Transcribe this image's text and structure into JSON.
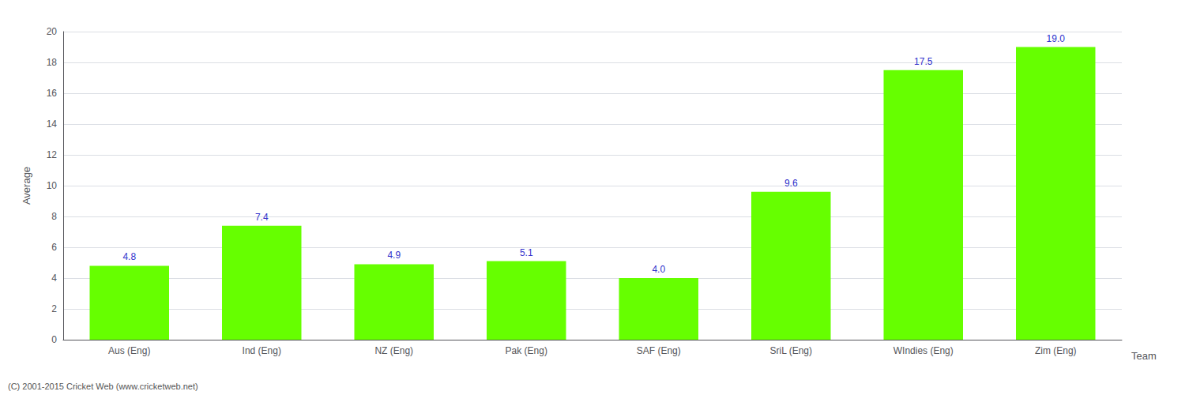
{
  "chart_data": {
    "type": "bar",
    "categories": [
      "Aus (Eng)",
      "Ind (Eng)",
      "NZ (Eng)",
      "Pak (Eng)",
      "SAF (Eng)",
      "SriL (Eng)",
      "WIndies (Eng)",
      "Zim (Eng)"
    ],
    "values": [
      4.8,
      7.4,
      4.9,
      5.1,
      4.0,
      9.6,
      17.5,
      19.0
    ],
    "value_labels": [
      "4.8",
      "7.4",
      "4.9",
      "5.1",
      "4.0",
      "9.6",
      "17.5",
      "19.0"
    ],
    "data_labels": true,
    "color": "#66ff00",
    "xlabel": "Team",
    "ylabel": "Average",
    "ylim": [
      0,
      20
    ],
    "yticks": [
      0,
      2,
      4,
      6,
      8,
      10,
      12,
      14,
      16,
      18,
      20
    ],
    "grid": true,
    "annotations": [
      "(C) 2001-2015 Cricket Web (www.cricketweb.net)"
    ]
  }
}
